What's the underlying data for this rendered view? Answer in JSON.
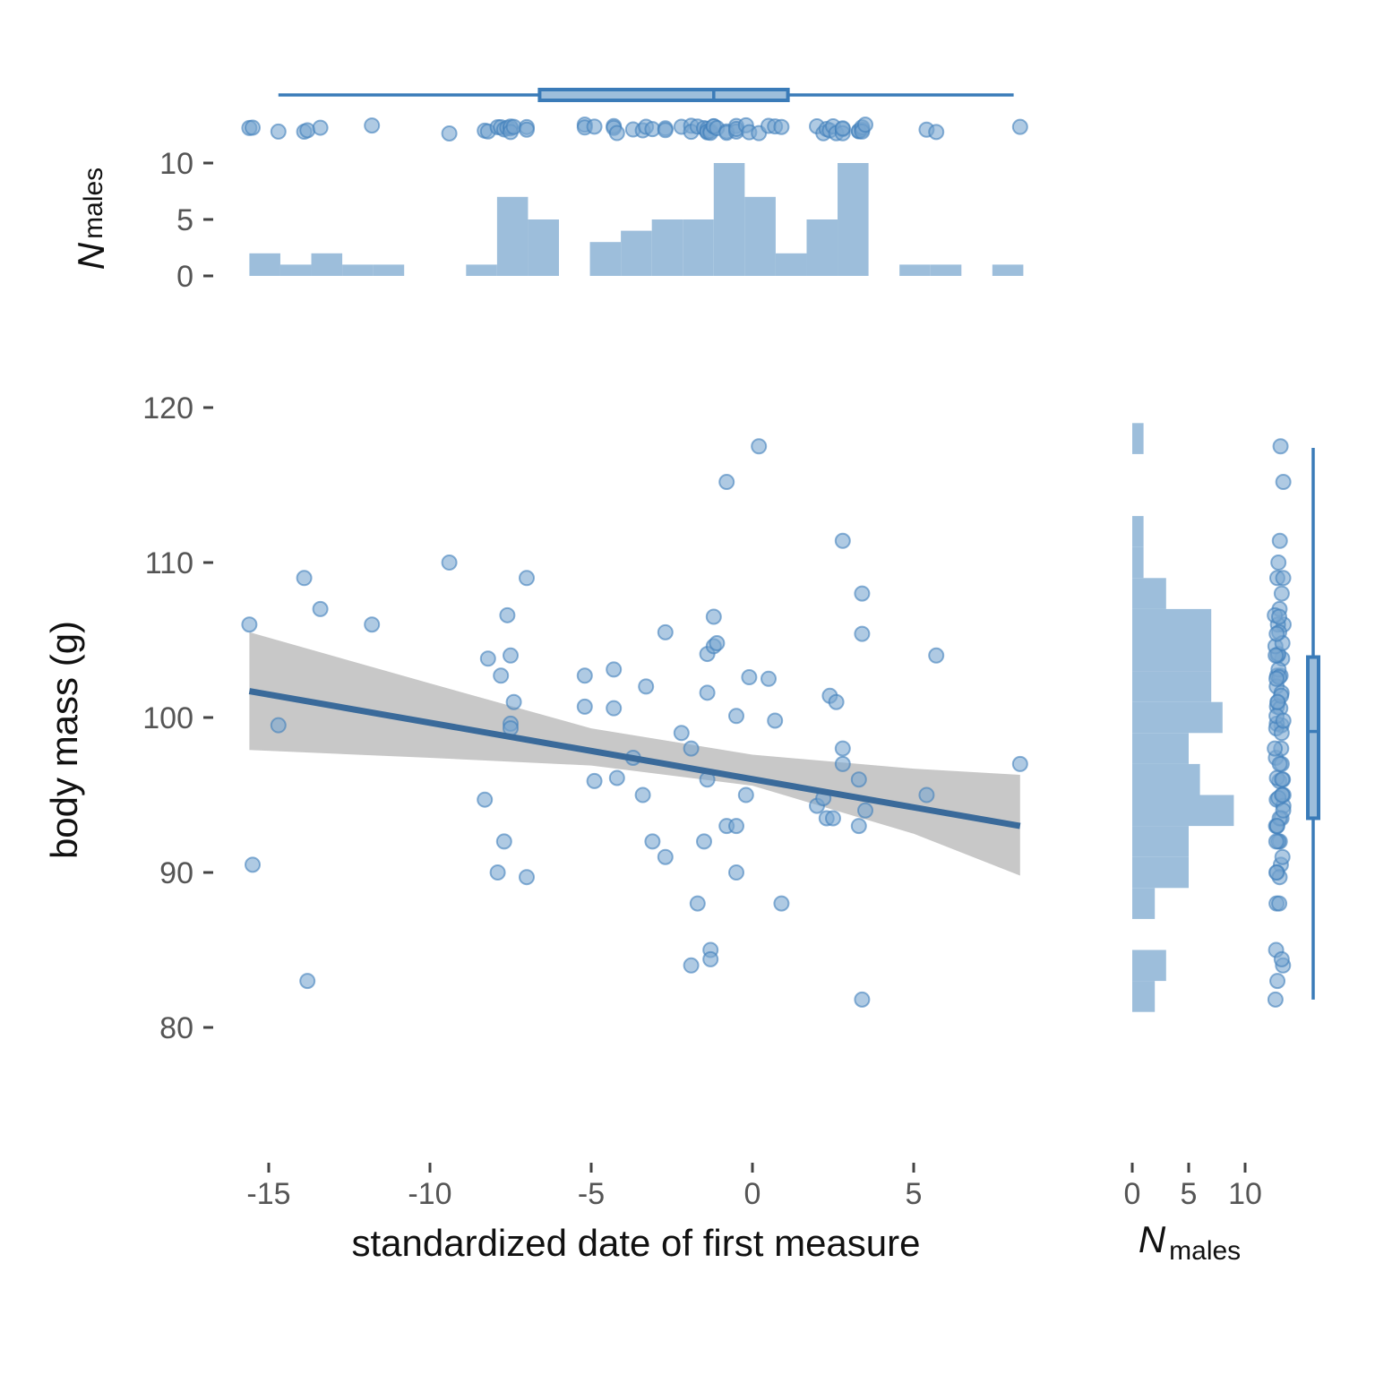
{
  "chart_data": {
    "type": "scatter",
    "title": "",
    "xlabel": "standardized date of first measure",
    "ylabel": "body mass (g)",
    "xlim": [
      -16,
      8.5
    ],
    "ylim": [
      72,
      120
    ],
    "x_ticks": [
      -15,
      -10,
      -5,
      0,
      5
    ],
    "x_tick_labels": [
      "-15",
      "-10",
      "-5",
      "0",
      "5"
    ],
    "y_ticks": [
      80,
      90,
      100,
      110,
      120
    ],
    "y_tick_labels": [
      "80",
      "90",
      "100",
      "110",
      "120"
    ],
    "grid": false,
    "legend": "none",
    "color": "#4682b4",
    "points": [
      [
        -15.6,
        106
      ],
      [
        -15.5,
        90.5
      ],
      [
        -14.7,
        99.5
      ],
      [
        -13.9,
        109
      ],
      [
        -13.8,
        83
      ],
      [
        -13.4,
        107
      ],
      [
        -11.8,
        106
      ],
      [
        -9.4,
        110
      ],
      [
        -8.3,
        94.7
      ],
      [
        -8.2,
        103.8
      ],
      [
        -7.9,
        90
      ],
      [
        -7.8,
        102.7
      ],
      [
        -7.7,
        92
      ],
      [
        -7.6,
        106.6
      ],
      [
        -7.5,
        104
      ],
      [
        -7.5,
        99.6
      ],
      [
        -7.5,
        99.3
      ],
      [
        -7.4,
        101
      ],
      [
        -7.0,
        109
      ],
      [
        -7.0,
        89.7
      ],
      [
        -5.2,
        102.7
      ],
      [
        -5.2,
        100.7
      ],
      [
        -4.9,
        95.9
      ],
      [
        -4.3,
        103.1
      ],
      [
        -4.3,
        100.6
      ],
      [
        -4.2,
        96.1
      ],
      [
        -3.7,
        97.4
      ],
      [
        -3.4,
        95
      ],
      [
        -3.3,
        102
      ],
      [
        -3.1,
        92
      ],
      [
        -2.7,
        105.5
      ],
      [
        -2.7,
        91
      ],
      [
        -2.2,
        99
      ],
      [
        -1.9,
        98
      ],
      [
        -1.9,
        84
      ],
      [
        -1.7,
        88
      ],
      [
        -1.5,
        92
      ],
      [
        -1.4,
        104.1
      ],
      [
        -1.4,
        101.6
      ],
      [
        -1.4,
        96
      ],
      [
        -1.3,
        85
      ],
      [
        -1.3,
        84.4
      ],
      [
        -1.2,
        106.5
      ],
      [
        -1.2,
        104.6
      ],
      [
        -1.1,
        104.8
      ],
      [
        -0.8,
        115.2
      ],
      [
        -0.8,
        93
      ],
      [
        -0.5,
        100.1
      ],
      [
        -0.5,
        93
      ],
      [
        -0.5,
        90
      ],
      [
        -0.2,
        95
      ],
      [
        -0.1,
        102.6
      ],
      [
        0.2,
        117.5
      ],
      [
        0.5,
        102.5
      ],
      [
        0.7,
        99.8
      ],
      [
        0.9,
        88
      ],
      [
        2.0,
        94.3
      ],
      [
        2.2,
        94.8
      ],
      [
        2.3,
        93.5
      ],
      [
        2.4,
        101.4
      ],
      [
        2.5,
        93.5
      ],
      [
        2.6,
        101
      ],
      [
        2.8,
        97
      ],
      [
        2.8,
        98
      ],
      [
        2.8,
        111.4
      ],
      [
        3.3,
        96
      ],
      [
        3.3,
        93
      ],
      [
        3.4,
        105.4
      ],
      [
        3.4,
        108
      ],
      [
        3.4,
        81.8
      ],
      [
        3.5,
        94
      ],
      [
        5.4,
        95
      ],
      [
        5.7,
        104
      ],
      [
        8.3,
        97
      ]
    ],
    "fit_line": {
      "x": [
        -15.6,
        8.3
      ],
      "y": [
        101.7,
        93.0
      ],
      "color": "#3a6a9a"
    },
    "ci_band": {
      "x": [
        -15.6,
        -10,
        -5,
        0,
        5,
        8.3
      ],
      "lower": [
        97.9,
        97.4,
        96.9,
        95.6,
        92.5,
        89.8
      ],
      "upper": [
        105.5,
        102.2,
        99.3,
        97.6,
        96.7,
        96.3
      ],
      "color": "#c8c8c8"
    },
    "top_histogram": {
      "ylabel_main": "N",
      "ylabel_sub": "males",
      "y_ticks": [
        0,
        5,
        10
      ],
      "y_tick_labels": [
        "0",
        "5",
        "10"
      ],
      "ylim": [
        0,
        10
      ],
      "bin_width": 0.96,
      "bin_starts": [
        -15.6,
        -14.64,
        -13.68,
        -12.72,
        -11.76,
        -8.88,
        -7.92,
        -6.96,
        -5.04,
        -4.08,
        -3.12,
        -2.16,
        -1.2,
        -0.24,
        0.72,
        1.68,
        2.64,
        4.56,
        5.52,
        7.44
      ],
      "counts": [
        2,
        1,
        2,
        1,
        1,
        1,
        7,
        5,
        3,
        4,
        5,
        5,
        10,
        7,
        2,
        5,
        10,
        1,
        1,
        1
      ]
    },
    "top_boxplot": {
      "min": -14.7,
      "q1": -6.6,
      "median": -1.2,
      "q3": 1.1,
      "max": 8.1
    },
    "right_histogram": {
      "xlabel_main": "N",
      "xlabel_sub": "males",
      "x_ticks": [
        0,
        5,
        10
      ],
      "x_tick_labels": [
        "0",
        "5",
        "10"
      ],
      "xlim": [
        0,
        10
      ],
      "bin_height": 2,
      "bin_starts": [
        81,
        83,
        87,
        89,
        91,
        93,
        95,
        97,
        99,
        101,
        103,
        105,
        107,
        109,
        111,
        117
      ],
      "counts": [
        2,
        3,
        2,
        5,
        5,
        9,
        6,
        5,
        8,
        7,
        7,
        7,
        3,
        1,
        1,
        1
      ]
    },
    "right_boxplot": {
      "min": 81.8,
      "q1": 93.5,
      "median": 99.1,
      "q3": 103.9,
      "max": 117.4
    }
  }
}
